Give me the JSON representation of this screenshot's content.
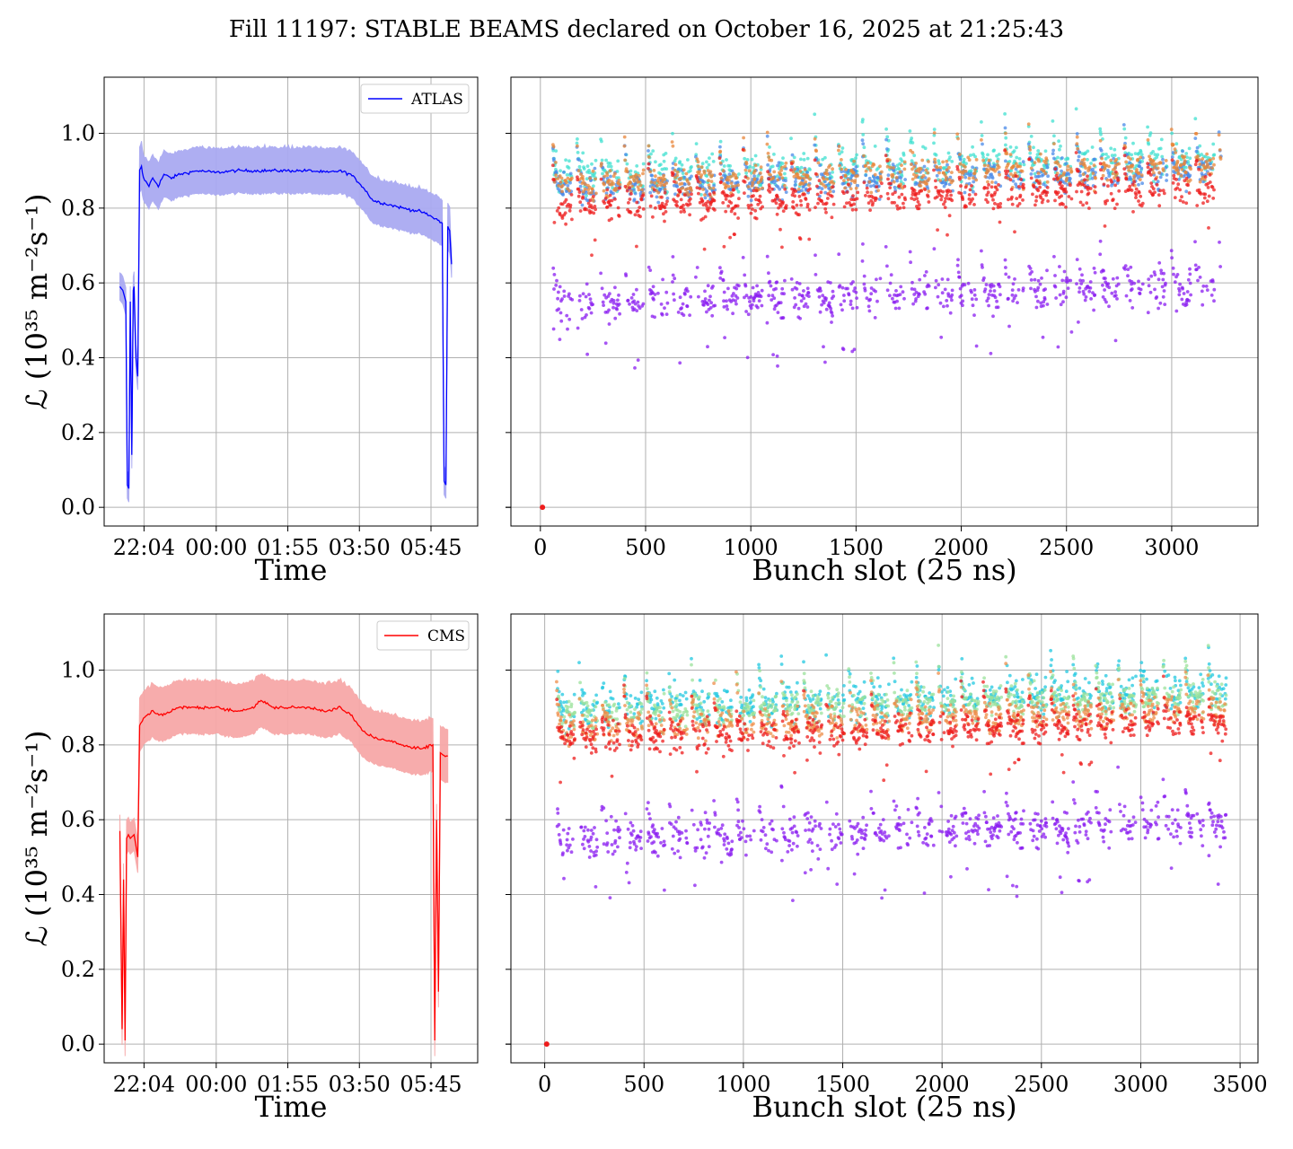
{
  "title": "Fill 11197: STABLE BEAMS declared on October 16, 2025 at 21:25:43",
  "colors": {
    "atlas_line": "#0000ff",
    "atlas_band": "#aaaaf2",
    "cms_line": "#ff0000",
    "cms_band": "#f7a8a8",
    "grid": "#b0b0b0"
  },
  "chart_data": [
    {
      "id": "atlas-time",
      "type": "line",
      "xlabel": "Time",
      "ylabel": "ℒ (10³⁵ m⁻²s⁻¹)",
      "x_ticks": [
        "22:04",
        "00:00",
        "01:55",
        "03:50",
        "05:45"
      ],
      "x_tick_hours": [
        22.067,
        24.0,
        25.917,
        27.833,
        29.75
      ],
      "xlim_hours": [
        21.0,
        31.0
      ],
      "y_ticks": [
        "0.0",
        "0.2",
        "0.4",
        "0.6",
        "0.8",
        "1.0"
      ],
      "ylim": [
        -0.05,
        1.15
      ],
      "legend": {
        "position": "upper right"
      },
      "series": [
        {
          "name": "ATLAS",
          "x_hours": [
            21.42,
            21.5,
            21.58,
            21.62,
            21.66,
            21.7,
            21.74,
            21.78,
            21.8,
            21.85,
            21.9,
            21.95,
            22.0,
            22.05,
            22.12,
            22.2,
            22.3,
            22.45,
            22.6,
            22.8,
            23.0,
            23.5,
            24.0,
            24.5,
            25.0,
            25.5,
            26.0,
            26.5,
            27.0,
            27.3,
            27.6,
            27.9,
            28.2,
            28.6,
            29.0,
            29.5,
            29.9,
            30.05,
            30.1,
            30.15,
            30.2,
            30.25,
            30.3
          ],
          "y": [
            0.59,
            0.58,
            0.55,
            0.06,
            0.05,
            0.55,
            0.14,
            0.58,
            0.59,
            0.4,
            0.35,
            0.9,
            0.91,
            0.88,
            0.87,
            0.86,
            0.88,
            0.86,
            0.89,
            0.88,
            0.89,
            0.9,
            0.895,
            0.9,
            0.9,
            0.9,
            0.9,
            0.9,
            0.895,
            0.9,
            0.89,
            0.86,
            0.82,
            0.81,
            0.8,
            0.79,
            0.77,
            0.76,
            0.07,
            0.06,
            0.75,
            0.74,
            0.65
          ],
          "band_width": 0.06
        }
      ]
    },
    {
      "id": "atlas-bunch",
      "type": "scatter",
      "xlabel": "Bunch slot (25 ns)",
      "x_ticks": [
        "0",
        "500",
        "1000",
        "1500",
        "2000",
        "2500",
        "3000"
      ],
      "x_tick_values": [
        0,
        500,
        1000,
        1500,
        2000,
        2500,
        3000
      ],
      "xlim": [
        -140,
        3410
      ],
      "y_ticks": [
        "0.0",
        "0.2",
        "0.4",
        "0.6",
        "0.8",
        "1.0"
      ],
      "ylim": [
        -0.05,
        1.15
      ],
      "bunch_range": [
        60,
        3235
      ],
      "train_period": 113,
      "groups": [
        {
          "name": "",
          "color": "#40e0d0",
          "level": 0.88,
          "spread": 0.05
        },
        {
          "name": "",
          "color": "#4a8ae8",
          "level": 0.85,
          "spread": 0.04
        },
        {
          "name": "",
          "color": "#e8863a",
          "level": 0.86,
          "spread": 0.04
        },
        {
          "name": "",
          "color": "#ee1c1c",
          "level": 0.8,
          "spread": 0.04
        },
        {
          "name": "",
          "color": "#8a1cf0",
          "level": 0.54,
          "spread": 0.05
        }
      ],
      "outlier_point": {
        "x": 10,
        "y": 0.0
      }
    },
    {
      "id": "cms-time",
      "type": "line",
      "xlabel": "Time",
      "ylabel": "ℒ (10³⁵ m⁻²s⁻¹)",
      "x_ticks": [
        "22:04",
        "00:00",
        "01:55",
        "03:50",
        "05:45"
      ],
      "x_tick_hours": [
        22.067,
        24.0,
        25.917,
        27.833,
        29.75
      ],
      "xlim_hours": [
        21.0,
        31.0
      ],
      "y_ticks": [
        "0.0",
        "0.2",
        "0.4",
        "0.6",
        "0.8",
        "1.0"
      ],
      "ylim": [
        -0.05,
        1.15
      ],
      "legend": {
        "position": "upper right"
      },
      "series": [
        {
          "name": "CMS",
          "x_hours": [
            21.42,
            21.48,
            21.52,
            21.56,
            21.6,
            21.65,
            21.7,
            21.8,
            21.9,
            21.95,
            22.0,
            22.05,
            22.15,
            22.3,
            22.5,
            22.8,
            23.0,
            23.5,
            24.0,
            24.5,
            25.0,
            25.2,
            25.5,
            26.0,
            26.5,
            27.0,
            27.3,
            27.6,
            27.9,
            28.2,
            28.6,
            29.0,
            29.5,
            29.8,
            29.85,
            29.9,
            29.95,
            30.0,
            30.1,
            30.2
          ],
          "y": [
            0.57,
            0.04,
            0.44,
            0.01,
            0.55,
            0.56,
            0.55,
            0.56,
            0.5,
            0.85,
            0.86,
            0.87,
            0.88,
            0.89,
            0.88,
            0.89,
            0.9,
            0.9,
            0.9,
            0.89,
            0.9,
            0.92,
            0.9,
            0.9,
            0.9,
            0.89,
            0.9,
            0.88,
            0.84,
            0.82,
            0.81,
            0.8,
            0.79,
            0.8,
            0.01,
            0.6,
            0.14,
            0.78,
            0.77,
            0.77
          ],
          "band_width": 0.07
        }
      ]
    },
    {
      "id": "cms-bunch",
      "type": "scatter",
      "xlabel": "Bunch slot (25 ns)",
      "x_ticks": [
        "0",
        "500",
        "1000",
        "1500",
        "2000",
        "2500",
        "3000",
        "3500"
      ],
      "x_tick_values": [
        0,
        500,
        1000,
        1500,
        2000,
        2500,
        3000,
        3500
      ],
      "xlim": [
        -170,
        3590
      ],
      "y_ticks": [
        "0.0",
        "0.2",
        "0.4",
        "0.6",
        "0.8",
        "1.0"
      ],
      "ylim": [
        -0.05,
        1.15
      ],
      "bunch_range": [
        60,
        3430
      ],
      "train_period": 113,
      "groups": [
        {
          "name": "",
          "color": "#22c8e0",
          "level": 0.89,
          "spread": 0.05
        },
        {
          "name": "",
          "color": "#9be29b",
          "level": 0.88,
          "spread": 0.04
        },
        {
          "name": "",
          "color": "#ee8e4a",
          "level": 0.84,
          "spread": 0.04
        },
        {
          "name": "",
          "color": "#ee1c1c",
          "level": 0.81,
          "spread": 0.04
        },
        {
          "name": "",
          "color": "#8a1cf0",
          "level": 0.54,
          "spread": 0.05
        }
      ],
      "outlier_point": {
        "x": 10,
        "y": 0.0
      }
    }
  ]
}
